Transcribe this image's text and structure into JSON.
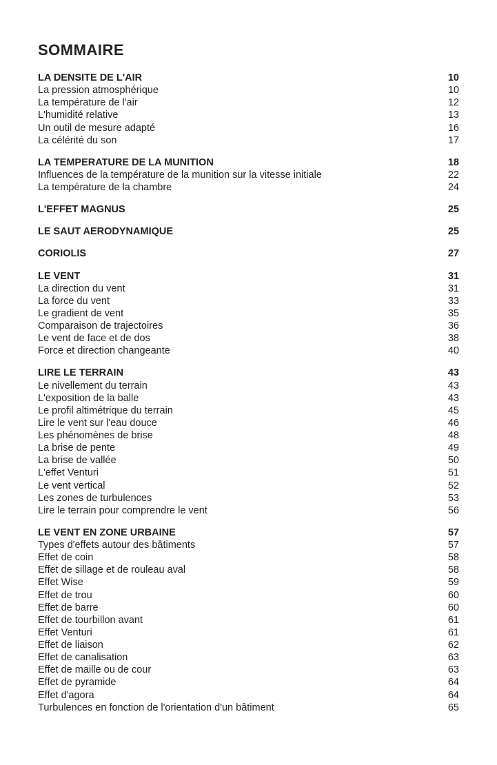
{
  "title": "SOMMAIRE",
  "sections": [
    {
      "heading": {
        "label": "LA DENSITE DE L'AIR",
        "page": "10"
      },
      "items": [
        {
          "label": "La pression atmosphérique",
          "page": "10"
        },
        {
          "label": "La température de l'air",
          "page": "12"
        },
        {
          "label": "L'humidité relative",
          "page": "13"
        },
        {
          "label": "Un outil de mesure adapté",
          "page": "16"
        },
        {
          "label": "La célérité du son",
          "page": "17"
        }
      ]
    },
    {
      "heading": {
        "label": "LA TEMPERATURE DE LA MUNITION",
        "page": "18"
      },
      "items": [
        {
          "label": "Influences de la température de la munition sur la vitesse initiale",
          "page": "22"
        },
        {
          "label": "La température de la chambre",
          "page": "24"
        }
      ]
    },
    {
      "heading": {
        "label": "L'EFFET MAGNUS",
        "page": "25"
      },
      "items": []
    },
    {
      "heading": {
        "label": "LE SAUT AERODYNAMIQUE",
        "page": "25"
      },
      "items": []
    },
    {
      "heading": {
        "label": "CORIOLIS",
        "page": "27"
      },
      "items": []
    },
    {
      "heading": {
        "label": "LE VENT",
        "page": "31"
      },
      "items": [
        {
          "label": "La direction du vent",
          "page": "31"
        },
        {
          "label": "La force du vent",
          "page": "33"
        },
        {
          "label": "Le gradient de vent",
          "page": "35"
        },
        {
          "label": "Comparaison de trajectoires",
          "page": "36"
        },
        {
          "label": "Le vent de face et de dos",
          "page": "38"
        },
        {
          "label": "Force et direction changeante",
          "page": "40"
        }
      ]
    },
    {
      "heading": {
        "label": "LIRE LE TERRAIN",
        "page": "43"
      },
      "items": [
        {
          "label": "Le nivellement du terrain",
          "page": "43"
        },
        {
          "label": "L'exposition de la balle",
          "page": "43"
        },
        {
          "label": "Le profil altimétrique du terrain",
          "page": "45"
        },
        {
          "label": "Lire le vent sur l'eau douce",
          "page": "46"
        },
        {
          "label": "Les phénomènes de brise",
          "page": "48"
        },
        {
          "label": "La brise de pente",
          "page": "49"
        },
        {
          "label": "La brise de vallée",
          "page": "50"
        },
        {
          "label": "L'effet Venturi",
          "page": "51"
        },
        {
          "label": "Le vent vertical",
          "page": "52"
        },
        {
          "label": "Les zones de turbulences",
          "page": "53"
        },
        {
          "label": "Lire le terrain pour comprendre le vent",
          "page": "56"
        }
      ]
    },
    {
      "heading": {
        "label": "LE VENT EN ZONE URBAINE",
        "page": "57"
      },
      "items": [
        {
          "label": "Types d'effets autour des bâtiments",
          "page": "57"
        },
        {
          "label": "Effet de coin",
          "page": "58"
        },
        {
          "label": "Effet de sillage et de rouleau aval",
          "page": "58"
        },
        {
          "label": "Effet Wise",
          "page": "59"
        },
        {
          "label": "Effet de trou",
          "page": "60"
        },
        {
          "label": "Effet de barre",
          "page": "60"
        },
        {
          "label": "Effet de tourbillon avant",
          "page": "61"
        },
        {
          "label": "Effet Venturi",
          "page": "61"
        },
        {
          "label": "Effet de liaison",
          "page": "62"
        },
        {
          "label": "Effet de canalisation",
          "page": "63"
        },
        {
          "label": "Effet de maille ou de cour",
          "page": "63"
        },
        {
          "label": "Effet de pyramide",
          "page": "64"
        },
        {
          "label": "Effet d'agora",
          "page": "64"
        },
        {
          "label": "Turbulences en fonction de l'orientation d'un bâtiment",
          "page": "65"
        }
      ]
    }
  ]
}
